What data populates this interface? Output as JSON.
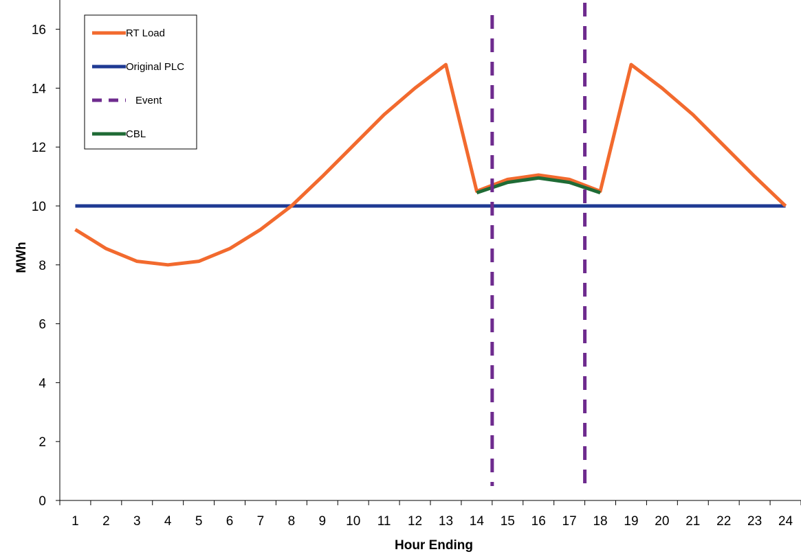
{
  "chart_data": {
    "type": "line",
    "title": "",
    "xlabel": "Hour Ending",
    "ylabel": "MWh",
    "categories": [
      "1",
      "2",
      "3",
      "4",
      "5",
      "6",
      "7",
      "8",
      "9",
      "10",
      "11",
      "12",
      "13",
      "14",
      "15",
      "16",
      "17",
      "18",
      "19",
      "20",
      "21",
      "22",
      "23",
      "24"
    ],
    "ylim": [
      0,
      17
    ],
    "yticks": [
      0,
      2,
      4,
      6,
      8,
      10,
      12,
      14,
      16
    ],
    "grid": false,
    "legend_position": "top-left",
    "series": [
      {
        "name": "RT Load",
        "style": "solid",
        "color": "#F26A2E",
        "values": [
          9.2,
          8.55,
          8.12,
          8.0,
          8.12,
          8.55,
          9.2,
          10.0,
          11.0,
          12.05,
          13.1,
          14.0,
          14.8,
          10.5,
          10.9,
          11.05,
          10.9,
          10.5,
          14.8,
          14.0,
          13.1,
          12.05,
          11.0,
          10.0
        ]
      },
      {
        "name": "Original PLC",
        "style": "solid",
        "color": "#1F3A93",
        "values": [
          10,
          10,
          10,
          10,
          10,
          10,
          10,
          10,
          10,
          10,
          10,
          10,
          10,
          10,
          10,
          10,
          10,
          10,
          10,
          10,
          10,
          10,
          10,
          10
        ]
      },
      {
        "name": "Event",
        "style": "dashed",
        "color": "#6E2B8E",
        "x_positions": [
          14.5,
          17.5
        ]
      },
      {
        "name": "CBL",
        "style": "solid",
        "color": "#1F6B35",
        "x": [
          14,
          15,
          16,
          17,
          18
        ],
        "values": [
          10.45,
          10.8,
          10.95,
          10.8,
          10.45
        ]
      }
    ]
  }
}
